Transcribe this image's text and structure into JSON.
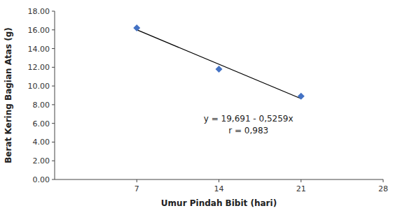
{
  "chart_data": {
    "type": "scatter",
    "x_label": "Umur Pindah Bibit (hari)",
    "y_label": "Berat Kering Bagian Atas (g)",
    "annotations": [
      "y = 19,691 - 0,5259x",
      "r = 0,983"
    ],
    "series": [
      {
        "type": "scatter",
        "color": "#4472C4",
        "marker": "diamond",
        "x": [
          7,
          14,
          21
        ],
        "values": [
          16.2,
          11.8,
          8.9
        ]
      },
      {
        "type": "line",
        "color": "#000000",
        "line_style": "solid",
        "x": [
          7,
          21
        ],
        "values": [
          16.0097,
          8.6471
        ]
      }
    ],
    "xlim": [
      0,
      28
    ],
    "ylim": [
      0,
      18
    ],
    "xticks": [
      7,
      14,
      21,
      28
    ],
    "yticks": [
      {
        "value": 0,
        "label": "0.00"
      },
      {
        "value": 2,
        "label": "2.00"
      },
      {
        "value": 4,
        "label": "4.00"
      },
      {
        "value": 6,
        "label": "6.00"
      },
      {
        "value": 8,
        "label": "8.00"
      },
      {
        "value": 10,
        "label": "10.00"
      },
      {
        "value": 12,
        "label": "12.00"
      },
      {
        "value": 14,
        "label": "14.00"
      },
      {
        "value": 16,
        "label": "16.00"
      },
      {
        "value": 18,
        "label": "18.00"
      }
    ],
    "grid": false
  }
}
